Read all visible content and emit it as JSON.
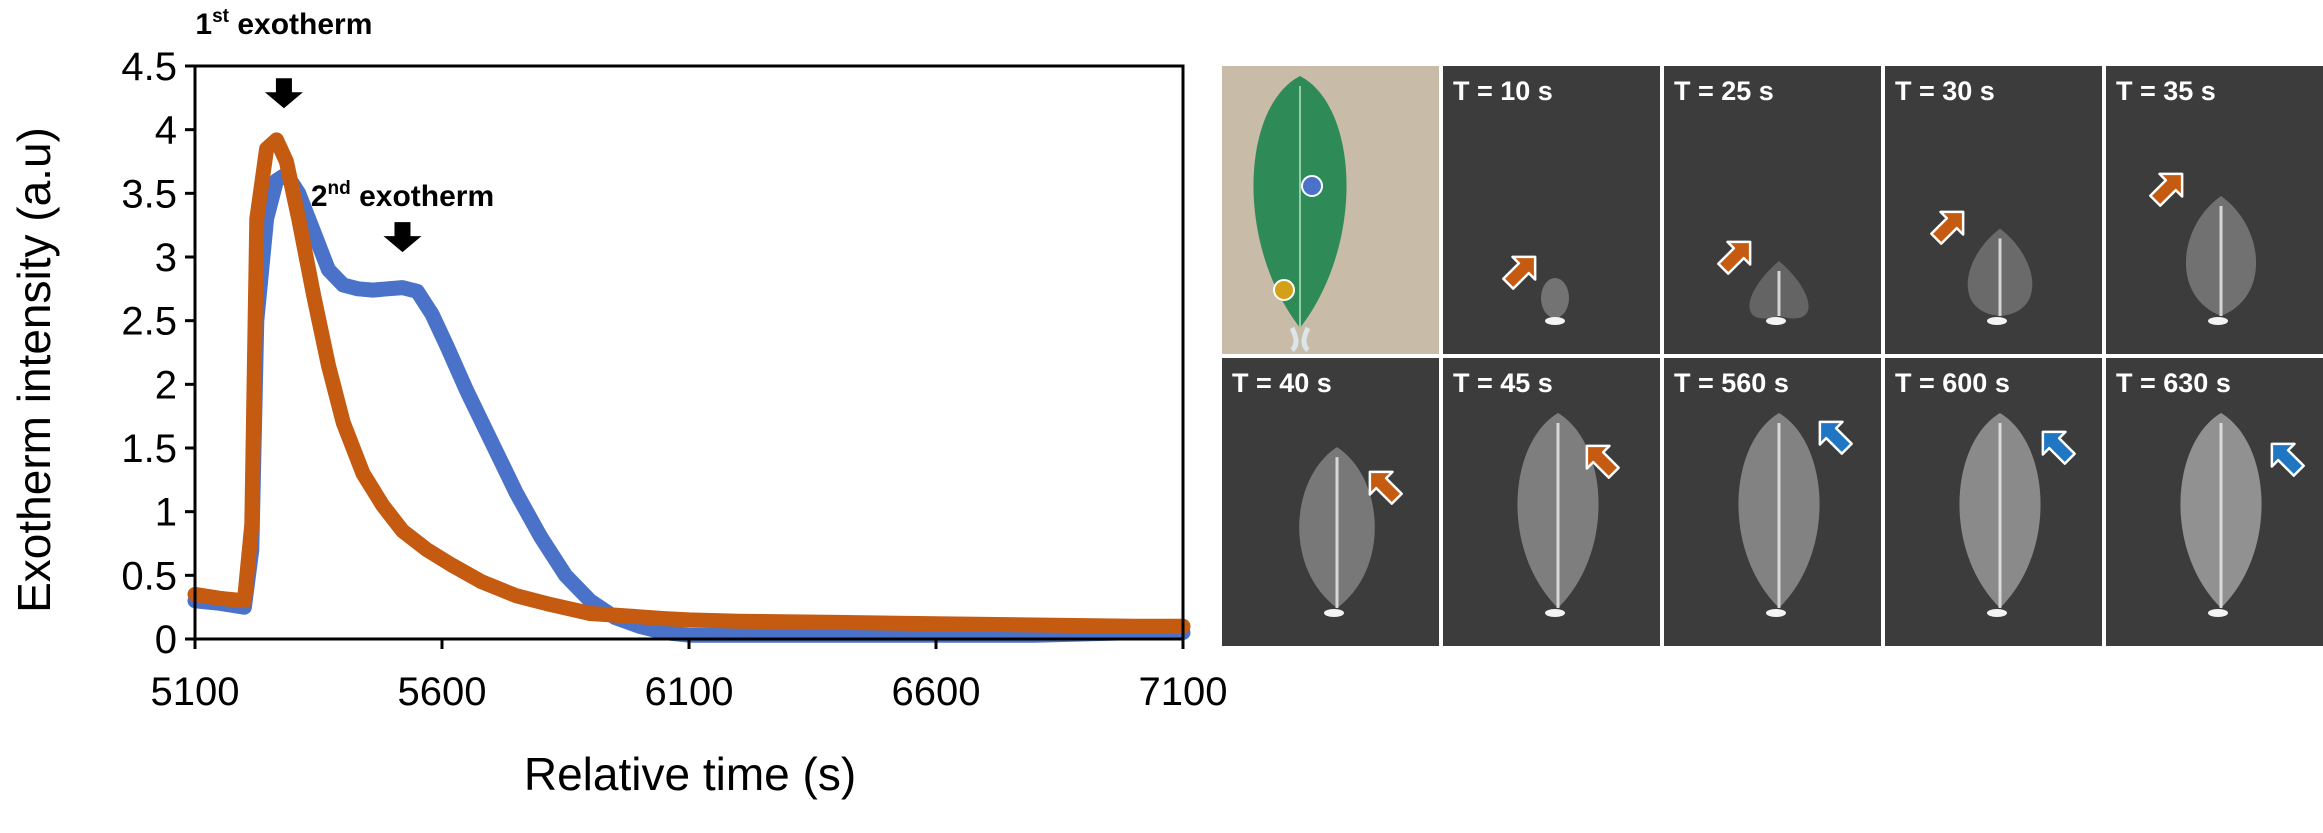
{
  "chart_data": {
    "type": "line",
    "title": "",
    "xlabel": "Relative time (s)",
    "ylabel": "Exotherm intensity (a.u)",
    "xlim": [
      5100,
      7100
    ],
    "ylim": [
      0,
      4.5
    ],
    "x_ticks": [
      "5100",
      "5600",
      "6100",
      "6600",
      "7100"
    ],
    "y_ticks": [
      "0",
      "0.5",
      "1",
      "1.5",
      "2",
      "2.5",
      "3",
      "3.5",
      "4",
      "4.5"
    ],
    "grid": false,
    "legend": "none",
    "series": [
      {
        "color": "#4a72c8",
        "x": [
          5100,
          5150,
          5200,
          5215,
          5225,
          5245,
          5265,
          5285,
          5310,
          5340,
          5370,
          5400,
          5430,
          5460,
          5490,
          5520,
          5550,
          5580,
          5610,
          5650,
          5700,
          5750,
          5800,
          5850,
          5900,
          5950,
          6000,
          6050,
          6100,
          6200,
          6400,
          6600,
          6800,
          7000,
          7100
        ],
        "y": [
          0.3,
          0.28,
          0.25,
          0.7,
          2.5,
          3.3,
          3.6,
          3.65,
          3.5,
          3.2,
          2.9,
          2.78,
          2.75,
          2.74,
          2.75,
          2.76,
          2.73,
          2.55,
          2.3,
          1.95,
          1.55,
          1.15,
          0.8,
          0.5,
          0.3,
          0.17,
          0.1,
          0.05,
          0.03,
          0.03,
          0.03,
          0.03,
          0.03,
          0.05,
          0.05
        ]
      },
      {
        "color": "#c55a11",
        "x": [
          5100,
          5150,
          5200,
          5215,
          5225,
          5245,
          5265,
          5285,
          5310,
          5340,
          5370,
          5400,
          5440,
          5480,
          5520,
          5570,
          5620,
          5680,
          5750,
          5820,
          5900,
          5980,
          6050,
          6100,
          6200,
          6400,
          6600,
          6800,
          7000,
          7100
        ],
        "y": [
          0.35,
          0.32,
          0.3,
          0.9,
          3.3,
          3.85,
          3.92,
          3.75,
          3.3,
          2.7,
          2.15,
          1.7,
          1.3,
          1.05,
          0.85,
          0.7,
          0.58,
          0.45,
          0.34,
          0.27,
          0.2,
          0.18,
          0.16,
          0.15,
          0.14,
          0.13,
          0.12,
          0.11,
          0.1,
          0.1
        ]
      }
    ],
    "annotations": [
      {
        "base": "1",
        "sup": "st",
        "rest": " exotherm",
        "x": 5280,
        "y_text": 4.75,
        "arrow_y": 4.2
      },
      {
        "base": "2",
        "sup": "nd",
        "rest": " exotherm",
        "x": 5520,
        "y_text": 3.4,
        "arrow_y": 3.07
      }
    ]
  },
  "panels": [
    {
      "label": "",
      "kind": "leaf-photo"
    },
    {
      "label": "T = 10 s",
      "kind": "thermal",
      "stage": 1,
      "arrow": "orange"
    },
    {
      "label": "T = 25 s",
      "kind": "thermal",
      "stage": 2,
      "arrow": "orange"
    },
    {
      "label": "T = 30 s",
      "kind": "thermal",
      "stage": 3,
      "arrow": "orange"
    },
    {
      "label": "T = 35 s",
      "kind": "thermal",
      "stage": 4,
      "arrow": "orange"
    },
    {
      "label": "T = 40 s",
      "kind": "thermal",
      "stage": 5,
      "arrow": "orange"
    },
    {
      "label": "T = 45 s",
      "kind": "thermal",
      "stage": 6,
      "arrow": "orange"
    },
    {
      "label": "T = 560 s",
      "kind": "thermal",
      "stage": 7,
      "arrow": "blue"
    },
    {
      "label": "T = 600 s",
      "kind": "thermal",
      "stage": 8,
      "arrow": "blue"
    },
    {
      "label": "T = 630 s",
      "kind": "thermal",
      "stage": 9,
      "arrow": "blue"
    }
  ],
  "colors": {
    "orange_arrow": "#c55a11",
    "blue_arrow": "#1f77c4",
    "leaf_green": "#2e8b57",
    "marker_blue": "#4a72c8",
    "marker_yellow": "#d4a017"
  }
}
